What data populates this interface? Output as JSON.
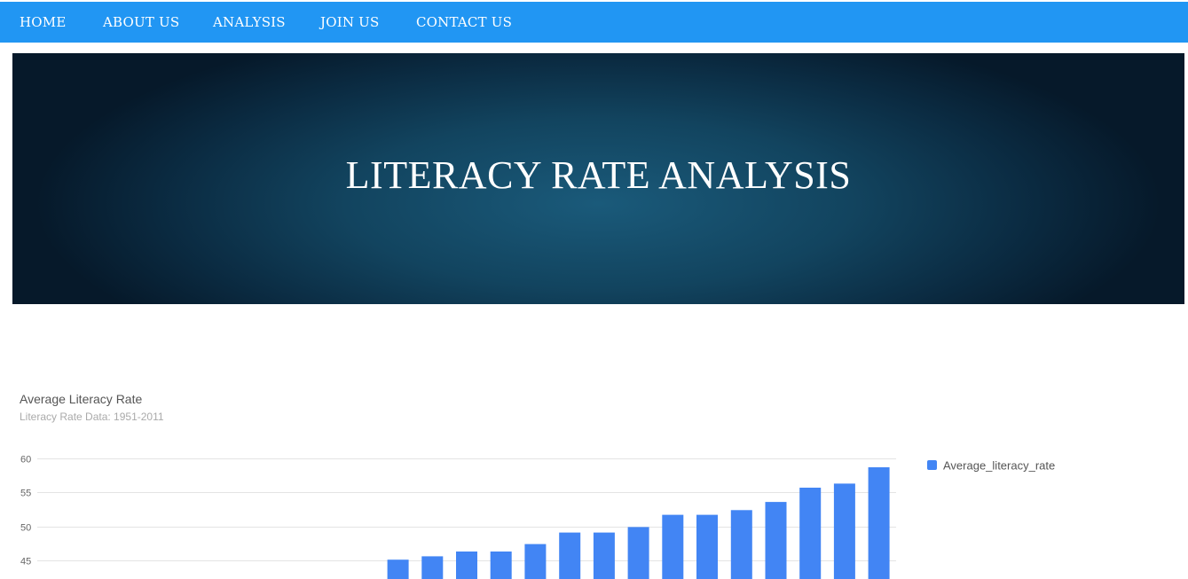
{
  "nav": {
    "items": [
      {
        "label": "HOME"
      },
      {
        "label": "ABOUT US"
      },
      {
        "label": "ANALYSIS"
      },
      {
        "label": "JOIN US"
      },
      {
        "label": "CONTACT US"
      }
    ]
  },
  "banner": {
    "title": "LITERACY RATE ANALYSIS"
  },
  "colors": {
    "nav": "#2196f3",
    "bars": "#4285f4"
  },
  "chart_data": {
    "type": "bar",
    "title": "Average Literacy Rate",
    "subtitle": "Literacy Rate Data: 1951-2011",
    "yticks": [
      45,
      50,
      55,
      60
    ],
    "ylim": [
      40,
      60
    ],
    "grid": true,
    "legend_position": "right",
    "series": [
      {
        "name": "Average_literacy_rate",
        "values": [
          null,
          null,
          null,
          null,
          null,
          null,
          null,
          null,
          null,
          null,
          45.1,
          45.6,
          46.3,
          46.3,
          47.4,
          49.1,
          49.1,
          49.9,
          51.7,
          51.7,
          52.4,
          53.6,
          55.7,
          56.3,
          58.7
        ]
      }
    ]
  }
}
